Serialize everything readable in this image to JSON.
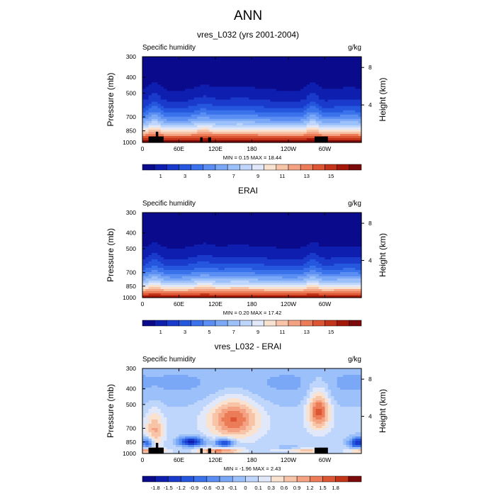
{
  "figure": {
    "title": "ANN"
  },
  "chart_data": [
    {
      "type": "heatmap",
      "title": "vres_L032 (yrs 2001-2004)",
      "left_label": "Specific humidity",
      "right_label": "g/kg",
      "ylabel": "Pressure (mb)",
      "y2label": "Height (km)",
      "x_ticks": [
        "0",
        "60E",
        "120E",
        "180",
        "120W",
        "60W"
      ],
      "y_ticks": [
        "300",
        "400",
        "500",
        "700",
        "850",
        "1000"
      ],
      "y2_ticks": [
        "8",
        "4"
      ],
      "stats": "MIN =   0.15  MAX =   18.44",
      "colorbar_labels": [
        "1",
        "3",
        "5",
        "7",
        "9",
        "11",
        "13",
        "15"
      ],
      "colors": [
        "#0a0a8c",
        "#0e1fb0",
        "#1a3acc",
        "#2456de",
        "#3a72ec",
        "#5a8ef2",
        "#7aa8f6",
        "#9cc0fa",
        "#bfd6fc",
        "#e0e8fa",
        "#fae2d0",
        "#f8c4a8",
        "#f4a282",
        "#ec7c58",
        "#dd5634",
        "#c43418",
        "#a4180a",
        "#7c0a0a"
      ],
      "xlim": [
        0,
        360
      ],
      "ylim": [
        1000,
        300
      ],
      "range": [
        0.15,
        18.44
      ]
    },
    {
      "type": "heatmap",
      "title": "ERAI",
      "left_label": "Specific humidity",
      "right_label": "g/kg",
      "ylabel": "Pressure (mb)",
      "y2label": "Height (km)",
      "x_ticks": [
        "0",
        "60E",
        "120E",
        "180",
        "120W",
        "60W"
      ],
      "y_ticks": [
        "300",
        "400",
        "500",
        "700",
        "850",
        "1000"
      ],
      "y2_ticks": [
        "8",
        "4"
      ],
      "stats": "MIN =   0.20  MAX =   17.42",
      "colorbar_labels": [
        "1",
        "3",
        "5",
        "7",
        "9",
        "11",
        "13",
        "15"
      ],
      "colors": [
        "#0a0a8c",
        "#0e1fb0",
        "#1a3acc",
        "#2456de",
        "#3a72ec",
        "#5a8ef2",
        "#7aa8f6",
        "#9cc0fa",
        "#bfd6fc",
        "#e0e8fa",
        "#fae2d0",
        "#f8c4a8",
        "#f4a282",
        "#ec7c58",
        "#dd5634",
        "#c43418",
        "#a4180a",
        "#7c0a0a"
      ],
      "xlim": [
        0,
        360
      ],
      "ylim": [
        1000,
        300
      ],
      "range": [
        0.2,
        17.42
      ]
    },
    {
      "type": "heatmap",
      "title": "vres_L032 - ERAI",
      "left_label": "Specific humidity",
      "right_label": "g/kg",
      "ylabel": "Pressure (mb)",
      "y2label": "Height (km)",
      "x_ticks": [
        "0",
        "60E",
        "120E",
        "180",
        "120W",
        "60W"
      ],
      "y_ticks": [
        "300",
        "400",
        "500",
        "700",
        "850",
        "1000"
      ],
      "y2_ticks": [
        "8",
        "4"
      ],
      "stats": "MIN =  -1.96  MAX =   2.43",
      "colorbar_labels": [
        "-1.8",
        "-1.5",
        "-1.2",
        "-0.9",
        "-0.6",
        "-0.3",
        "-0.1",
        "0",
        "0.1",
        "0.3",
        "0.6",
        "0.9",
        "1.2",
        "1.5",
        "1.8"
      ],
      "colors": [
        "#0a0a8c",
        "#0e1fb0",
        "#1a3acc",
        "#2456de",
        "#3a72ec",
        "#5a8ef2",
        "#7aa8f6",
        "#9cc0fa",
        "#bfd6fc",
        "#e0e8fa",
        "#fae2d0",
        "#f8c4a8",
        "#f4a282",
        "#ec7c58",
        "#dd5634",
        "#c43418",
        "#7c0a0a"
      ],
      "xlim": [
        0,
        360
      ],
      "ylim": [
        1000,
        300
      ],
      "range": [
        -1.96,
        2.43
      ]
    }
  ]
}
